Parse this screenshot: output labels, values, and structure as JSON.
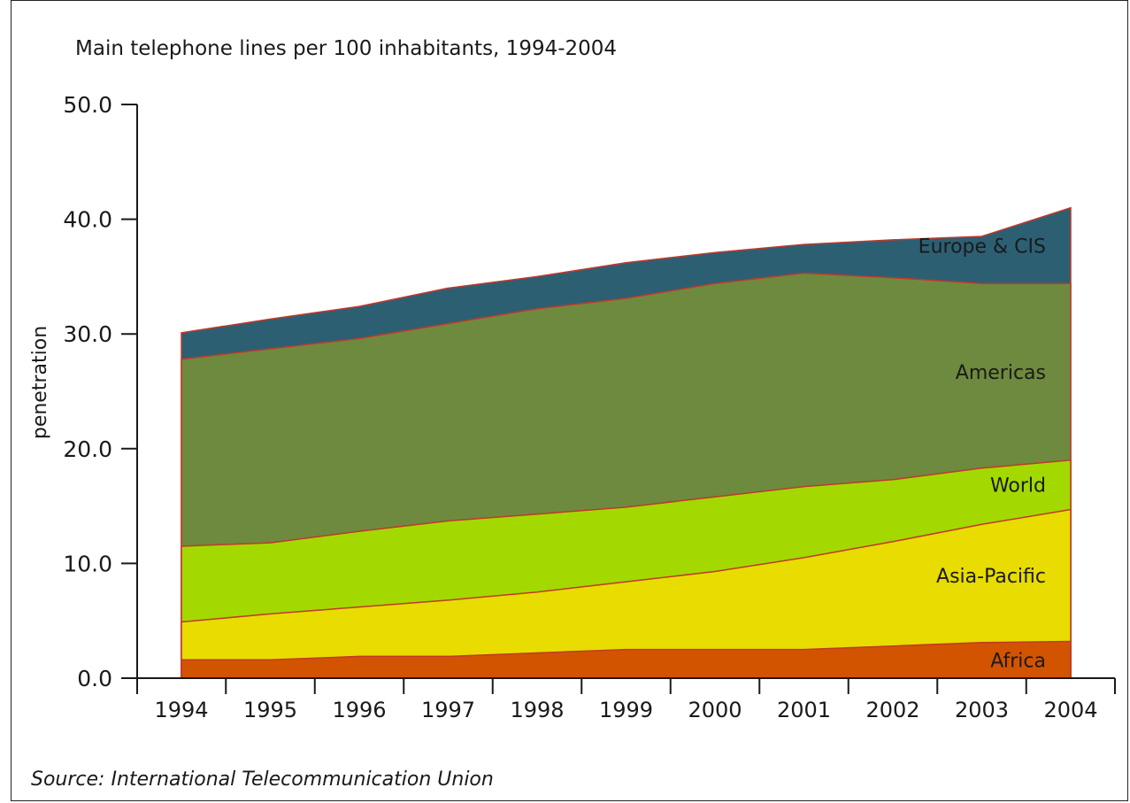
{
  "chart_data": {
    "type": "area",
    "title": "Main telephone lines per 100 inhabitants, 1994-2004",
    "xlabel": "",
    "ylabel": "penetration",
    "source": "Source: International Telecommunication Union",
    "x": [
      "1994",
      "1995",
      "1996",
      "1997",
      "1998",
      "1999",
      "2000",
      "2001",
      "2002",
      "2003",
      "2004"
    ],
    "ylim": [
      0,
      50
    ],
    "yticks": [
      "0.0",
      "10.0",
      "20.0",
      "30.0",
      "40.0",
      "50.0"
    ],
    "grid": false,
    "legend": "labels placed inside areas at right",
    "series": [
      {
        "name": "Africa",
        "color": "#d35400",
        "values": [
          1.6,
          1.6,
          1.9,
          1.9,
          2.2,
          2.5,
          2.5,
          2.5,
          2.8,
          3.1,
          3.2
        ]
      },
      {
        "name": "Asia-Pacific",
        "color": "#e8dc00",
        "values": [
          4.9,
          5.6,
          6.2,
          6.8,
          7.5,
          8.4,
          9.3,
          10.5,
          11.9,
          13.4,
          14.7
        ]
      },
      {
        "name": "World",
        "color": "#a3d900",
        "values": [
          11.5,
          11.8,
          12.8,
          13.7,
          14.3,
          14.9,
          15.8,
          16.7,
          17.3,
          18.3,
          19.0
        ]
      },
      {
        "name": "Americas",
        "color": "#6e8a3e",
        "values": [
          27.8,
          28.7,
          29.6,
          30.9,
          32.2,
          33.1,
          34.4,
          35.3,
          34.9,
          34.4,
          34.4
        ]
      },
      {
        "name": "Europe & CIS",
        "color": "#2d5f73",
        "values": [
          30.1,
          31.3,
          32.4,
          34.0,
          35.0,
          36.2,
          37.1,
          37.8,
          38.2,
          38.5,
          41.0
        ]
      }
    ]
  }
}
